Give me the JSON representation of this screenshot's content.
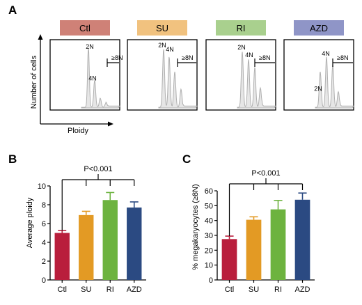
{
  "panels": {
    "a": "A",
    "b": "B",
    "c": "C"
  },
  "colors": {
    "Ctl": "#b91e3c",
    "SU": "#e39a24",
    "RI": "#6db33f",
    "AZD": "#2b4a82",
    "Ctl_box": "#cf8177",
    "SU_box": "#f1c27f",
    "RI_box": "#a9d08e",
    "AZD_box": "#8f95c7",
    "hist_fill": "#e6e6e6",
    "hist_line": "#b0b0b0"
  },
  "panel_a": {
    "ylabel": "Number of cells",
    "xlabel": "Ploidy",
    "histograms": [
      {
        "condition": "Ctl",
        "labels": [
          "2N",
          "4N",
          "≥8N"
        ]
      },
      {
        "condition": "SU",
        "labels": [
          "2N",
          "4N",
          "≥8N"
        ]
      },
      {
        "condition": "RI",
        "labels": [
          "2N",
          "4N",
          "≥8N"
        ]
      },
      {
        "condition": "AZD",
        "labels": [
          "4N",
          "≥8N",
          "2N"
        ]
      }
    ]
  },
  "chart_data": [
    {
      "type": "bar",
      "panel": "B",
      "categories": [
        "Ctl",
        "SU",
        "RI",
        "AZD"
      ],
      "values": [
        5.0,
        6.9,
        8.5,
        7.7
      ],
      "errors": [
        0.25,
        0.4,
        0.8,
        0.6
      ],
      "ylabel": "Average ploidy",
      "ylim": [
        0,
        10
      ],
      "yticks": [
        0,
        2,
        4,
        6,
        8,
        10
      ],
      "annotation": "P<0.001"
    },
    {
      "type": "bar",
      "panel": "C",
      "categories": [
        "Ctl",
        "SU",
        "RI",
        "AZD"
      ],
      "values": [
        27.5,
        40.5,
        47.5,
        54
      ],
      "errors": [
        2,
        2,
        6,
        4.5
      ],
      "ylabel": "% megakaryocytes (≥8N)",
      "ylim": [
        0,
        60
      ],
      "yticks": [
        0,
        10,
        20,
        30,
        40,
        50,
        60
      ],
      "annotation": "P<0.001"
    }
  ]
}
